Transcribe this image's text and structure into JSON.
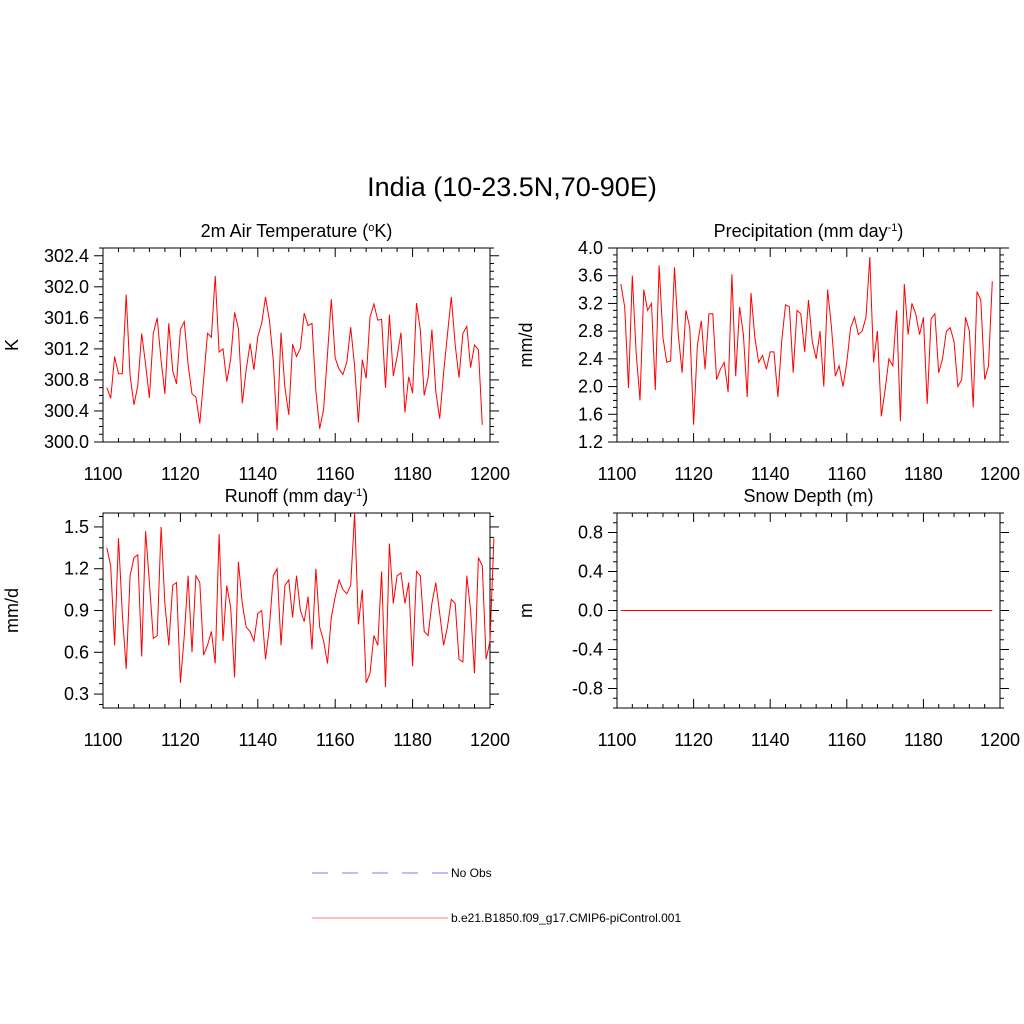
{
  "figure": {
    "title": "India (10-23.5N,70-90E)"
  },
  "legend": {
    "entries": [
      {
        "label": "No Obs",
        "color": "#9999ff",
        "style": "dashed"
      },
      {
        "label": "b.e21.B1850.f09_g17.CMIP6-piControl.001",
        "color": "#ff9999",
        "style": "solid"
      }
    ]
  },
  "chart_data": [
    {
      "type": "line",
      "title": "2m Air Temperature (oK)",
      "title_parts": {
        "pre": "2m Air Temperature (",
        "sup": "o",
        "post": "K)"
      },
      "xlabel": "",
      "ylabel": "K",
      "xlim": [
        1100,
        1200
      ],
      "ylim": [
        300.0,
        302.5
      ],
      "xticks": [
        1100,
        1120,
        1140,
        1160,
        1180,
        1200
      ],
      "yticks": [
        300.0,
        300.4,
        300.8,
        301.2,
        301.6,
        302.0,
        302.4
      ],
      "ytick_labels": [
        "300.0",
        "300.4",
        "300.8",
        "301.2",
        "301.6",
        "302.0",
        "302.4"
      ],
      "series": [
        {
          "color": "#ff0000",
          "x_start": 1101,
          "values": [
            300.7,
            300.56,
            301.1,
            300.88,
            300.88,
            301.9,
            300.85,
            300.48,
            300.73,
            301.4,
            301.0,
            300.57,
            301.4,
            301.6,
            301.05,
            300.62,
            301.53,
            300.92,
            300.75,
            301.45,
            301.55,
            301.0,
            300.62,
            300.58,
            300.24,
            300.8,
            301.4,
            301.35,
            302.14,
            301.16,
            301.2,
            300.78,
            301.07,
            301.67,
            301.46,
            300.5,
            300.93,
            301.27,
            300.93,
            301.36,
            301.53,
            301.87,
            301.57,
            301.05,
            300.15,
            301.41,
            300.7,
            300.35,
            301.26,
            301.1,
            301.21,
            301.66,
            301.5,
            301.53,
            300.65,
            300.17,
            300.42,
            301.13,
            301.84,
            301.08,
            300.94,
            300.87,
            301.03,
            301.48,
            300.98,
            300.25,
            301.06,
            300.82,
            301.61,
            301.78,
            301.57,
            301.58,
            300.7,
            301.64,
            300.85,
            301.1,
            301.41,
            300.38,
            300.84,
            300.63,
            301.79,
            301.45,
            300.6,
            300.83,
            301.45,
            300.65,
            300.3,
            300.89,
            301.38,
            301.87,
            301.25,
            300.83,
            301.4,
            301.49,
            300.96,
            301.25,
            301.19,
            300.22
          ]
        }
      ]
    },
    {
      "type": "line",
      "title": "Precipitation (mm day-1)",
      "title_parts": {
        "pre": "Precipitation (mm day",
        "sup": "-1",
        "post": ")"
      },
      "xlabel": "",
      "ylabel": "mm/d",
      "xlim": [
        1100,
        1200
      ],
      "ylim": [
        1.2,
        4.0
      ],
      "xticks": [
        1100,
        1120,
        1140,
        1160,
        1180,
        1200
      ],
      "yticks": [
        1.2,
        1.6,
        2.0,
        2.4,
        2.8,
        3.2,
        3.6,
        4.0
      ],
      "ytick_labels": [
        "1.2",
        "1.6",
        "2.0",
        "2.4",
        "2.8",
        "3.2",
        "3.6",
        "4.0"
      ],
      "series": [
        {
          "color": "#ff0000",
          "x_start": 1101,
          "values": [
            3.48,
            3.15,
            1.98,
            3.6,
            2.5,
            1.8,
            3.4,
            3.1,
            3.2,
            1.95,
            3.75,
            2.7,
            2.35,
            2.37,
            3.72,
            2.75,
            2.2,
            3.1,
            2.85,
            1.45,
            2.6,
            2.95,
            2.25,
            3.05,
            3.05,
            2.1,
            2.25,
            2.35,
            1.92,
            3.62,
            2.15,
            3.15,
            2.75,
            1.85,
            3.35,
            2.7,
            2.35,
            2.45,
            2.25,
            2.5,
            2.5,
            1.85,
            2.65,
            3.18,
            3.15,
            2.2,
            3.1,
            3.05,
            2.5,
            3.25,
            2.65,
            2.4,
            2.8,
            2.0,
            3.4,
            2.85,
            2.15,
            2.3,
            2.0,
            2.35,
            2.85,
            3.0,
            2.75,
            2.8,
            3.0,
            3.87,
            2.35,
            2.8,
            1.57,
            1.95,
            2.4,
            2.3,
            3.1,
            1.5,
            3.48,
            2.75,
            3.2,
            3.05,
            2.75,
            3.0,
            1.75,
            2.98,
            3.05,
            2.2,
            2.4,
            2.8,
            2.85,
            2.65,
            2.0,
            2.1,
            3.0,
            2.8,
            1.7,
            3.37,
            3.25,
            2.1,
            2.3,
            3.52
          ]
        }
      ]
    },
    {
      "type": "line",
      "title": "Runoff (mm day-1)",
      "title_parts": {
        "pre": "Runoff (mm day",
        "sup": "-1",
        "post": ")"
      },
      "xlabel": "",
      "ylabel": "mm/d",
      "xlim": [
        1100,
        1200
      ],
      "ylim": [
        0.2,
        1.6
      ],
      "xticks": [
        1100,
        1120,
        1140,
        1160,
        1180,
        1200
      ],
      "yticks": [
        0.3,
        0.6,
        0.9,
        1.2,
        1.5
      ],
      "ytick_labels": [
        "0.3",
        "0.6",
        "0.9",
        "1.2",
        "1.5"
      ],
      "series": [
        {
          "color": "#ff0000",
          "x_start": 1101,
          "values": [
            1.35,
            1.22,
            0.65,
            1.42,
            0.88,
            0.48,
            1.15,
            1.28,
            1.3,
            0.57,
            1.47,
            1.1,
            0.7,
            0.72,
            1.5,
            0.95,
            0.65,
            1.08,
            1.1,
            0.38,
            0.72,
            1.15,
            0.6,
            1.15,
            1.1,
            0.58,
            0.65,
            0.75,
            0.52,
            1.45,
            0.68,
            1.08,
            0.92,
            0.42,
            1.25,
            0.95,
            0.78,
            0.75,
            0.68,
            0.88,
            0.9,
            0.55,
            0.78,
            1.15,
            1.2,
            0.65,
            1.08,
            1.12,
            0.85,
            1.15,
            0.9,
            0.82,
            1.0,
            0.62,
            1.2,
            0.78,
            0.68,
            0.52,
            0.85,
            1.0,
            1.12,
            1.05,
            1.02,
            1.08,
            1.6,
            0.8,
            1.05,
            0.38,
            0.45,
            0.72,
            0.65,
            1.18,
            0.35,
            1.38,
            0.95,
            1.15,
            1.17,
            0.95,
            1.1,
            0.5,
            1.18,
            1.15,
            0.75,
            0.72,
            0.95,
            1.1,
            0.88,
            0.65,
            0.78,
            0.98,
            0.95,
            0.55,
            0.53,
            1.15,
            0.9,
            0.45,
            1.28,
            1.22,
            0.55,
            0.68,
            1.42
          ]
        }
      ]
    },
    {
      "type": "line",
      "title": "Snow Depth (m)",
      "title_parts": {
        "pre": "Snow Depth (m)",
        "sup": "",
        "post": ""
      },
      "xlabel": "",
      "ylabel": "m",
      "xlim": [
        1100,
        1200
      ],
      "ylim": [
        -1.0,
        1.0
      ],
      "xticks": [
        1100,
        1120,
        1140,
        1160,
        1180,
        1200
      ],
      "yticks": [
        -0.8,
        -0.4,
        0.0,
        0.4,
        0.8
      ],
      "ytick_labels": [
        "-0.8",
        "-0.4",
        "0.0",
        "0.4",
        "0.8"
      ],
      "series": [
        {
          "color": "#ff0000",
          "x_start": 1101,
          "x_end": 1198,
          "constant": 0.0
        }
      ]
    }
  ]
}
